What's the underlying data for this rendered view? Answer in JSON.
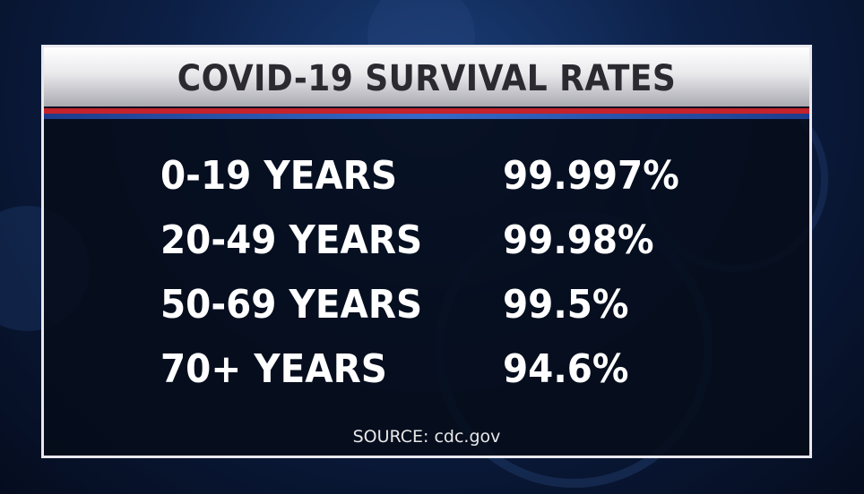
{
  "header": {
    "title": "COVID-19 SURVIVAL RATES"
  },
  "table": {
    "rows": [
      [
        "0-19 YEARS",
        "99.997%"
      ],
      [
        "20-49 YEARS",
        "99.98%"
      ],
      [
        "50-69 YEARS",
        "99.5%"
      ],
      [
        "70+ YEARS",
        "94.6%"
      ]
    ]
  },
  "footer": {
    "source": "SOURCE: cdc.gov"
  }
}
